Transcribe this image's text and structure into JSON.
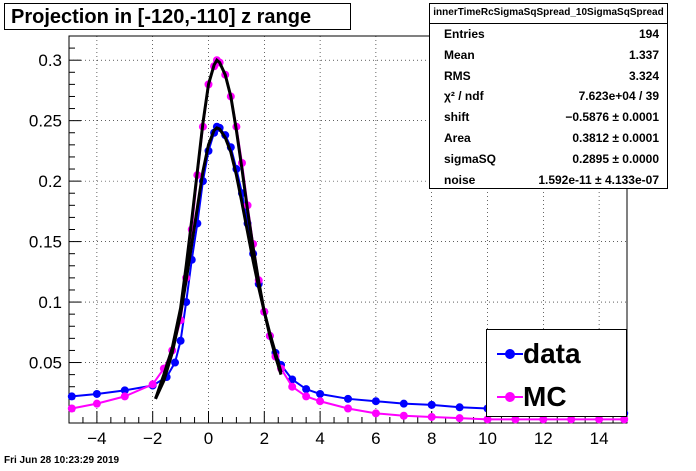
{
  "title": "Projection in [-120,-110] z range",
  "footer_date": "Fri Jun 28 10:23:29 2019",
  "stats": {
    "title": "innerTimeRcSigmaSqSpread_10SigmaSqSpread",
    "rows": [
      {
        "label": "Entries",
        "value": "194"
      },
      {
        "label": "Mean",
        "value": "1.337"
      },
      {
        "label": "RMS",
        "value": "3.324"
      },
      {
        "label": "χ² / ndf",
        "value": "7.623e+04 / 39"
      },
      {
        "label": "shift",
        "value": "−0.5876 ± 0.0001"
      },
      {
        "label": "Area",
        "value": "0.3812 ± 0.0001"
      },
      {
        "label": "sigmaSQ",
        "value": "0.2895 ± 0.0000"
      },
      {
        "label": "noise",
        "value": "1.592e-11 ± 4.133e-07"
      }
    ]
  },
  "legend": [
    {
      "label": "data",
      "color": "#0000ff"
    },
    {
      "label": "MC",
      "color": "#ff00ff"
    }
  ],
  "chart_data": {
    "type": "scatter",
    "xlim": [
      -5,
      15
    ],
    "ylim": [
      0,
      0.32
    ],
    "x_ticks": [
      -4,
      -2,
      0,
      2,
      4,
      6,
      8,
      10,
      12,
      14
    ],
    "y_ticks": [
      0.05,
      0.1,
      0.15,
      0.2,
      0.25,
      0.3
    ],
    "x_tick_labels": [
      "−4",
      "−2",
      "0",
      "2",
      "4",
      "6",
      "8",
      "10",
      "12",
      "14"
    ],
    "y_tick_labels": [
      "0.05",
      "0.1",
      "0.15",
      "0.2",
      "0.25",
      "0.3"
    ],
    "grid": true,
    "legend_position": "bottom-right",
    "series": [
      {
        "name": "data",
        "color": "#0000ff",
        "x": [
          -4.9,
          -4.0,
          -3.0,
          -2.0,
          -1.5,
          -1.2,
          -1.0,
          -0.8,
          -0.6,
          -0.4,
          -0.2,
          0.0,
          0.2,
          0.3,
          0.4,
          0.6,
          0.8,
          1.0,
          1.2,
          1.4,
          1.6,
          1.8,
          2.0,
          2.2,
          2.4,
          2.6,
          3.0,
          3.5,
          4.0,
          5.0,
          6.0,
          7.0,
          8.0,
          9.0,
          10.0,
          11.0,
          12.0,
          13.0,
          14.0,
          14.9
        ],
        "y": [
          0.022,
          0.024,
          0.027,
          0.031,
          0.038,
          0.05,
          0.068,
          0.1,
          0.135,
          0.165,
          0.2,
          0.225,
          0.24,
          0.245,
          0.244,
          0.238,
          0.228,
          0.21,
          0.19,
          0.165,
          0.14,
          0.115,
          0.092,
          0.072,
          0.058,
          0.048,
          0.036,
          0.028,
          0.024,
          0.02,
          0.018,
          0.016,
          0.015,
          0.013,
          0.012,
          0.011,
          0.01,
          0.009,
          0.008,
          0.008
        ]
      },
      {
        "name": "MC",
        "color": "#ff00ff",
        "x": [
          -4.9,
          -4.0,
          -3.0,
          -2.0,
          -1.6,
          -1.3,
          -1.0,
          -0.8,
          -0.6,
          -0.4,
          -0.2,
          0.0,
          0.2,
          0.3,
          0.4,
          0.6,
          0.8,
          1.0,
          1.2,
          1.4,
          1.6,
          1.8,
          2.0,
          2.2,
          2.4,
          2.6,
          3.0,
          3.5,
          4.0,
          5.0,
          6.0,
          7.0,
          8.0,
          9.0,
          10.0,
          11.0,
          12.0,
          13.0,
          14.0,
          14.9
        ],
        "y": [
          0.012,
          0.016,
          0.022,
          0.032,
          0.045,
          0.06,
          0.085,
          0.12,
          0.16,
          0.205,
          0.245,
          0.28,
          0.295,
          0.3,
          0.298,
          0.288,
          0.27,
          0.245,
          0.215,
          0.18,
          0.148,
          0.118,
          0.092,
          0.072,
          0.055,
          0.045,
          0.03,
          0.022,
          0.018,
          0.012,
          0.008,
          0.006,
          0.005,
          0.004,
          0.003,
          0.003,
          0.003,
          0.003,
          0.003,
          0.003
        ]
      },
      {
        "name": "",
        "color": "#000000",
        "style": "line",
        "x": [
          -1.9,
          -1.6,
          -1.3,
          -1.0,
          -0.8,
          -0.6,
          -0.4,
          -0.2,
          0.0,
          0.2,
          0.3,
          0.4,
          0.6,
          0.8,
          1.0,
          1.2,
          1.4,
          1.6,
          1.8,
          2.0,
          2.2,
          2.4,
          2.6
        ],
        "y": [
          0.02,
          0.035,
          0.058,
          0.09,
          0.118,
          0.148,
          0.178,
          0.208,
          0.23,
          0.242,
          0.244,
          0.243,
          0.236,
          0.224,
          0.205,
          0.182,
          0.158,
          0.134,
          0.112,
          0.092,
          0.074,
          0.058,
          0.042
        ]
      },
      {
        "name": "",
        "color": "#000000",
        "style": "line",
        "x": [
          -1.9,
          -1.6,
          -1.3,
          -1.0,
          -0.8,
          -0.6,
          -0.4,
          -0.2,
          0.0,
          0.2,
          0.3,
          0.4,
          0.6,
          0.8,
          1.0,
          1.2,
          1.4,
          1.6,
          1.8,
          2.0,
          2.2,
          2.4,
          2.6
        ],
        "y": [
          0.02,
          0.04,
          0.062,
          0.095,
          0.13,
          0.168,
          0.208,
          0.248,
          0.28,
          0.296,
          0.3,
          0.298,
          0.288,
          0.27,
          0.242,
          0.21,
          0.176,
          0.145,
          0.117,
          0.092,
          0.072,
          0.055,
          0.04
        ]
      }
    ]
  }
}
